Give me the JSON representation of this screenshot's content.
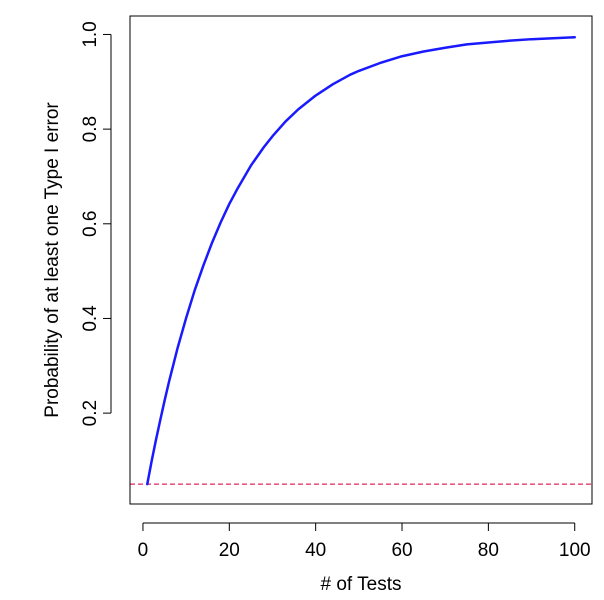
{
  "chart_data": {
    "type": "line",
    "title": "",
    "xlabel": "# of Tests",
    "ylabel": "Probability of at least one Type I error",
    "xlim": [
      -3.0,
      104.0
    ],
    "ylim": [
      0.008,
      1.039
    ],
    "x_ticks": [
      0,
      20,
      40,
      60,
      80,
      100
    ],
    "x_tick_labels": [
      "0",
      "20",
      "40",
      "60",
      "80",
      "100"
    ],
    "y_ticks": [
      0.2,
      0.4,
      0.6,
      0.8,
      1.0
    ],
    "y_tick_labels": [
      "0.2",
      "0.4",
      "0.6",
      "0.8",
      "1.0"
    ],
    "grid": false,
    "legend": "none",
    "series": [
      {
        "color": "#1a1aff",
        "line_style": "solid",
        "x": [
          1,
          2,
          3,
          4,
          5,
          6,
          8,
          10,
          12,
          14,
          16,
          18,
          20,
          22,
          25,
          28,
          30,
          33,
          36,
          40,
          44,
          48,
          50,
          55,
          60,
          65,
          70,
          75,
          80,
          85,
          90,
          95,
          100
        ],
        "y": [
          0.05,
          0.098,
          0.143,
          0.185,
          0.226,
          0.265,
          0.337,
          0.401,
          0.46,
          0.512,
          0.56,
          0.603,
          0.642,
          0.676,
          0.723,
          0.762,
          0.785,
          0.816,
          0.842,
          0.871,
          0.895,
          0.915,
          0.923,
          0.94,
          0.954,
          0.964,
          0.972,
          0.979,
          0.983,
          0.987,
          0.99,
          0.992,
          0.994
        ]
      }
    ],
    "reference_line": {
      "orientation": "horizontal",
      "y": 0.05,
      "color": "#e0245e",
      "line_style": "dashed"
    }
  }
}
